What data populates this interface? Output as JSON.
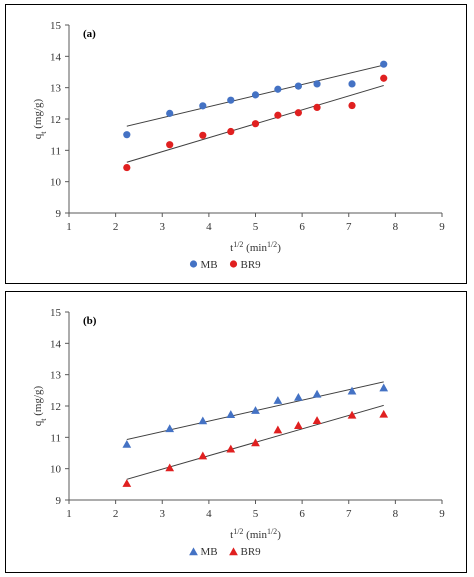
{
  "chart_data": [
    {
      "type": "scatter",
      "panel_label": "(a)",
      "xlim": [
        1,
        9
      ],
      "ylim": [
        9,
        15
      ],
      "xticks": [
        "1",
        "2",
        "3",
        "4",
        "5",
        "6",
        "7",
        "8",
        "9"
      ],
      "yticks": [
        "9",
        "10",
        "11",
        "12",
        "13",
        "14",
        "15"
      ],
      "xlabel": "t1/2 (min1/2)",
      "ylabel": "qt (mg/g)",
      "marker": "circle",
      "grid": false,
      "legend_position": "bottom-center",
      "series": [
        {
          "name": "MB",
          "color": "#4472C4",
          "x": [
            2.24,
            3.16,
            3.87,
            4.47,
            5.0,
            5.48,
            5.92,
            6.32,
            7.07,
            7.75
          ],
          "y": [
            11.5,
            12.18,
            12.42,
            12.6,
            12.77,
            12.95,
            13.05,
            13.12,
            13.12,
            13.75
          ],
          "trendline": [
            [
              2.24,
              11.77
            ],
            [
              7.75,
              13.72
            ]
          ]
        },
        {
          "name": "BR9",
          "color": "#E02020",
          "x": [
            2.24,
            3.16,
            3.87,
            4.47,
            5.0,
            5.48,
            5.92,
            6.32,
            7.07,
            7.75
          ],
          "y": [
            10.45,
            11.18,
            11.48,
            11.6,
            11.85,
            12.12,
            12.2,
            12.37,
            12.43,
            13.3
          ],
          "trendline": [
            [
              2.24,
              10.62
            ],
            [
              7.75,
              13.07
            ]
          ]
        }
      ]
    },
    {
      "type": "scatter",
      "panel_label": "(b)",
      "xlim": [
        1,
        9
      ],
      "ylim": [
        9,
        15
      ],
      "xticks": [
        "1",
        "2",
        "3",
        "4",
        "5",
        "6",
        "7",
        "8",
        "9"
      ],
      "yticks": [
        "9",
        "10",
        "11",
        "12",
        "13",
        "14",
        "15"
      ],
      "xlabel": "t1/2 (min1/2)",
      "ylabel": "qt (mg/g)",
      "marker": "triangle",
      "grid": false,
      "legend_position": "bottom-center",
      "series": [
        {
          "name": "MB",
          "color": "#4472C4",
          "x": [
            2.24,
            3.16,
            3.87,
            4.47,
            5.0,
            5.48,
            5.92,
            6.32,
            7.07,
            7.75
          ],
          "y": [
            10.77,
            11.27,
            11.52,
            11.72,
            11.85,
            12.17,
            12.27,
            12.37,
            12.47,
            12.57
          ],
          "trendline": [
            [
              2.24,
              10.93
            ],
            [
              7.75,
              12.77
            ]
          ]
        },
        {
          "name": "BR9",
          "color": "#E02020",
          "x": [
            2.24,
            3.16,
            3.87,
            4.47,
            5.0,
            5.48,
            5.92,
            6.32,
            7.07,
            7.75
          ],
          "y": [
            9.52,
            10.02,
            10.4,
            10.62,
            10.82,
            11.23,
            11.37,
            11.53,
            11.7,
            11.73
          ],
          "trendline": [
            [
              2.24,
              9.66
            ],
            [
              7.75,
              12.02
            ]
          ]
        }
      ]
    }
  ]
}
